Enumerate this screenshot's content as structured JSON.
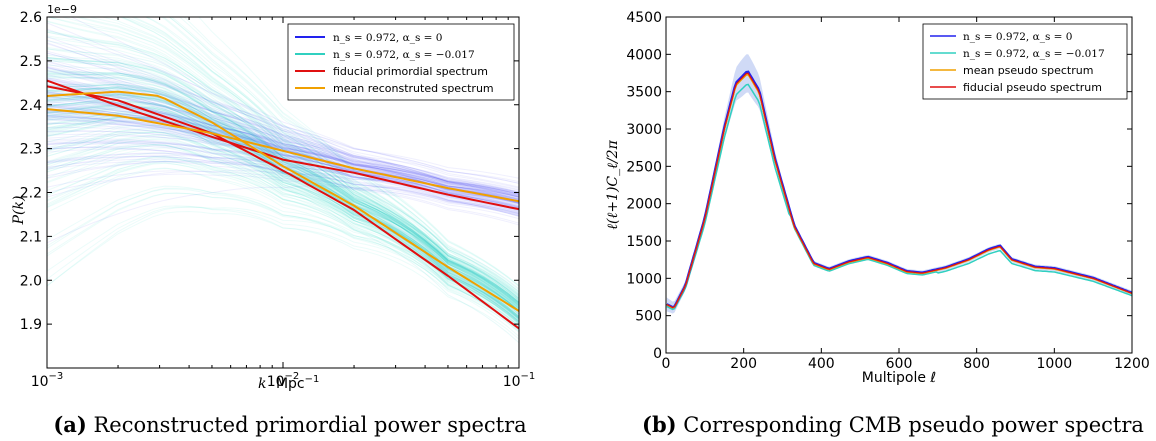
{
  "chart_data": [
    {
      "type": "line",
      "caption_label": "(a)",
      "caption_text": "Reconstructed primordial power spectra",
      "xlabel_var": "k",
      "xlabel_unit": "Mpc",
      "xlabel_exp": "−1",
      "ylabel": "P(k)",
      "y_multiplier": "1e−9",
      "x_scale": "log",
      "xlim": [
        0.001,
        0.1
      ],
      "ylim": [
        1.8,
        2.6
      ],
      "x_ticks": [
        {
          "base": "10",
          "exp": "−3"
        },
        {
          "base": "10",
          "exp": "−2"
        },
        {
          "base": "10",
          "exp": "−1"
        }
      ],
      "y_ticks": [
        "1.9",
        "2.0",
        "2.1",
        "2.2",
        "2.3",
        "2.4",
        "2.5",
        "2.6"
      ],
      "legend": {
        "position": "top-right",
        "entries": [
          {
            "math": "n_s = 0.972, α_s =  0",
            "color": "#2222ee"
          },
          {
            "math": "n_s = 0.972, α_s = −0.017",
            "color": "#30d0c0"
          },
          {
            "text": "fiducial primordial spectrum",
            "color": "#e01010"
          },
          {
            "text": "mean reconstruted spectrum",
            "color": "#f0a000"
          }
        ]
      },
      "series": [
        {
          "name": "fiducial primordial spectrum",
          "color": "#e01010",
          "x": [
            0.001,
            0.002,
            0.005,
            0.01,
            0.02,
            0.05,
            0.1
          ],
          "values": [
            2.455,
            2.398,
            2.327,
            2.275,
            2.245,
            2.195,
            2.162
          ]
        },
        {
          "name": "fiducial primordial spectrum",
          "color": "#e01010",
          "x": [
            0.001,
            0.002,
            0.005,
            0.01,
            0.02,
            0.05,
            0.1
          ],
          "values": [
            2.442,
            2.41,
            2.335,
            2.25,
            2.16,
            2.01,
            1.89
          ]
        },
        {
          "name": "mean reconstruted spectrum",
          "color": "#f0a000",
          "x": [
            0.001,
            0.002,
            0.005,
            0.01,
            0.02,
            0.05,
            0.1
          ],
          "values": [
            2.39,
            2.375,
            2.335,
            2.295,
            2.255,
            2.21,
            2.18
          ]
        },
        {
          "name": "mean reconstruted spectrum",
          "color": "#f0a000",
          "x": [
            0.001,
            0.002,
            0.003,
            0.005,
            0.01,
            0.02,
            0.05,
            0.1
          ],
          "values": [
            2.42,
            2.43,
            2.42,
            2.36,
            2.26,
            2.17,
            2.03,
            1.93
          ]
        }
      ]
    },
    {
      "type": "line",
      "caption_label": "(b)",
      "caption_text": "Corresponding CMB pseudo power spectra",
      "xlabel": "Multipole ℓ",
      "ylabel": "ℓ(ℓ+1)C_ℓ/2π",
      "xlim": [
        0,
        1200
      ],
      "ylim": [
        0,
        4500
      ],
      "x_ticks": [
        "0",
        "200",
        "400",
        "600",
        "800",
        "1000",
        "1200"
      ],
      "y_ticks": [
        "0",
        "500",
        "1000",
        "1500",
        "2000",
        "2500",
        "3000",
        "3500",
        "4000",
        "4500"
      ],
      "legend": {
        "position": "top-right",
        "entries": [
          {
            "math": "n_s = 0.972, α_s =  0",
            "color": "#2222ee"
          },
          {
            "math": "n_s = 0.972, α_s = −0.017",
            "color": "#30d0c0"
          },
          {
            "text": "mean pseudo spectrum",
            "color": "#f0a000"
          },
          {
            "text": "fiducial pseudo spectrum",
            "color": "#e01010"
          }
        ]
      },
      "series": [
        {
          "name": "fiducial pseudo spectrum",
          "color": "#e01010",
          "x": [
            2,
            20,
            50,
            100,
            150,
            180,
            210,
            240,
            280,
            330,
            380,
            420,
            470,
            520,
            570,
            620,
            660,
            720,
            780,
            830,
            860,
            890,
            950,
            1000,
            1100,
            1200
          ],
          "values": [
            650,
            600,
            900,
            1800,
            3000,
            3600,
            3760,
            3500,
            2600,
            1700,
            1200,
            1120,
            1220,
            1280,
            1200,
            1090,
            1070,
            1140,
            1250,
            1380,
            1430,
            1250,
            1150,
            1130,
            1000,
            800
          ]
        }
      ]
    }
  ]
}
